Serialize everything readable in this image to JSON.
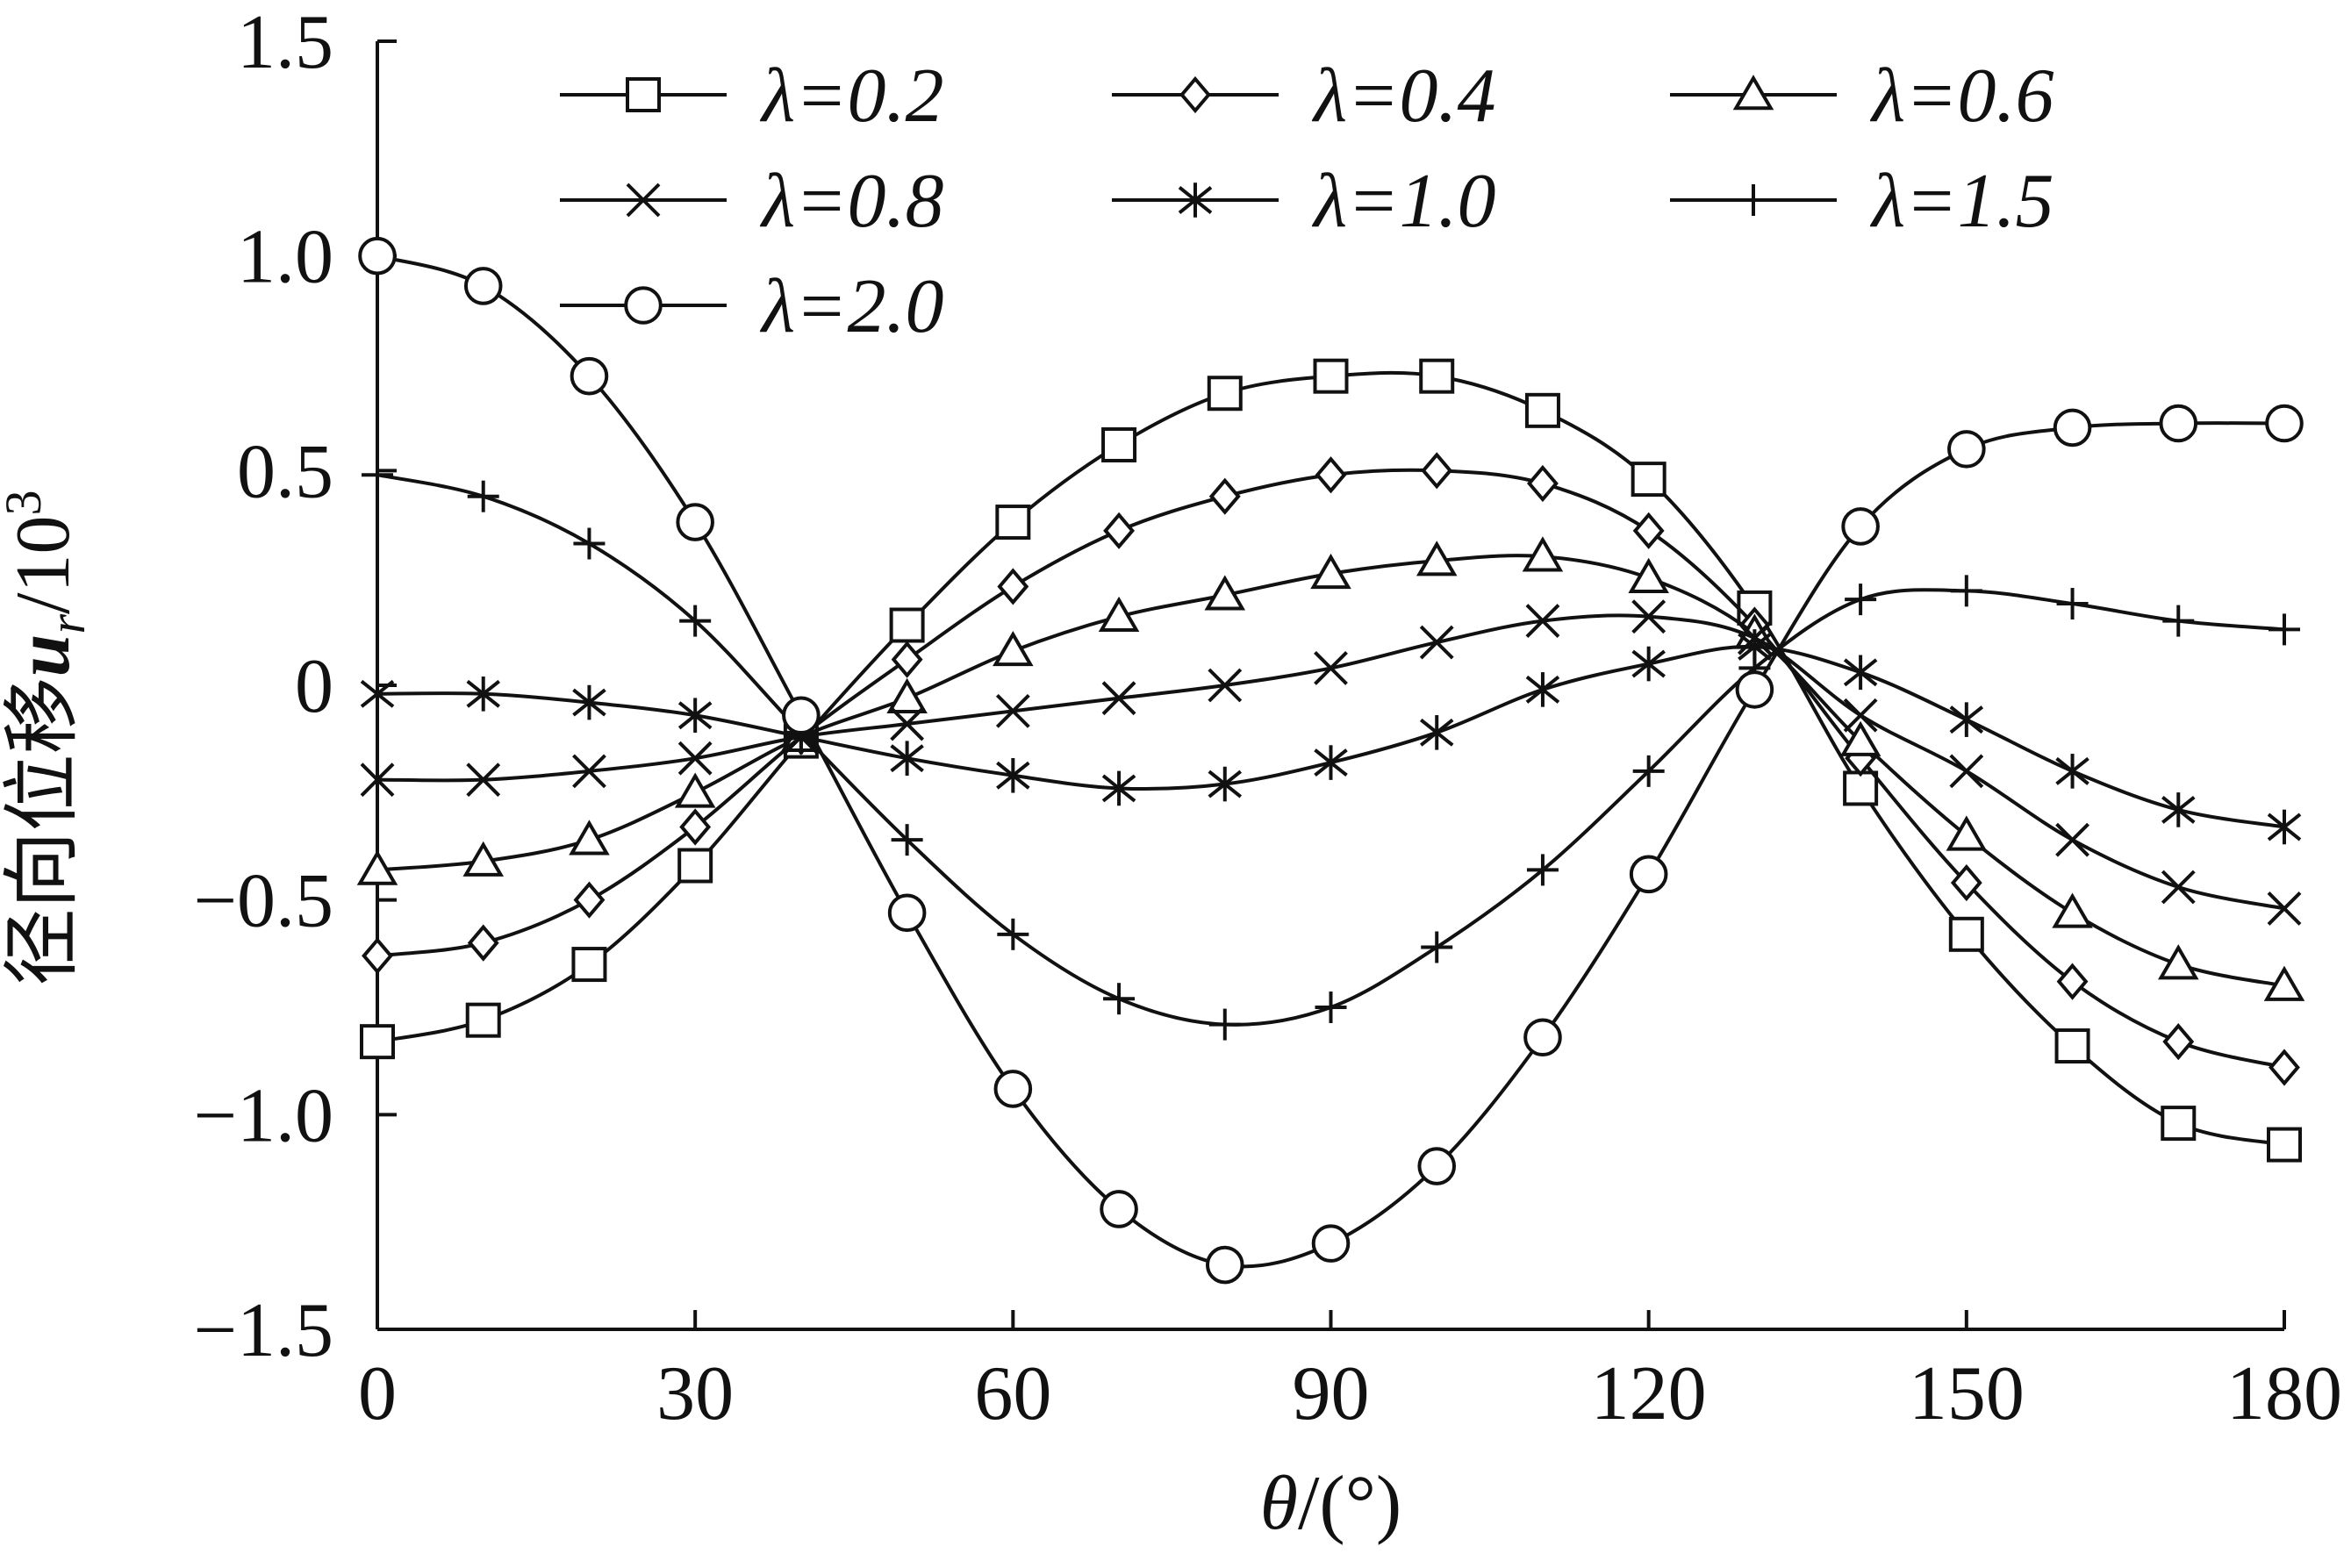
{
  "chart_data": {
    "type": "line",
    "xlabel": "θ/(°)",
    "ylabel": "径向位移u_r/10^3",
    "ylabel_parts": {
      "prefix": "径向位移",
      "var": "u",
      "sub": "r",
      "slash": "/10",
      "sup": "3"
    },
    "xlim": [
      0,
      180
    ],
    "ylim": [
      -1.5,
      1.5
    ],
    "xticks": [
      0,
      30,
      60,
      90,
      120,
      150,
      180
    ],
    "xtick_labels": [
      "0",
      "30",
      "60",
      "90",
      "120",
      "150",
      "180"
    ],
    "yticks": [
      1.5,
      1.0,
      0.5,
      0,
      -0.5,
      -1.0,
      -1.5
    ],
    "ytick_labels": [
      "1.5",
      "1.0",
      "0.5",
      "0",
      "−0.5",
      "−1.0",
      "−1.5"
    ],
    "legend_position": "top",
    "x": [
      0,
      10,
      20,
      30,
      40,
      50,
      60,
      70,
      80,
      90,
      100,
      110,
      120,
      130,
      140,
      150,
      160,
      170,
      180
    ],
    "series": [
      {
        "name": "λ=0.2",
        "marker": "square",
        "values": [
          -0.83,
          -0.78,
          -0.65,
          -0.42,
          -0.13,
          0.14,
          0.38,
          0.56,
          0.68,
          0.72,
          0.72,
          0.64,
          0.48,
          0.18,
          -0.24,
          -0.58,
          -0.84,
          -1.02,
          -1.07
        ]
      },
      {
        "name": "λ=0.4",
        "marker": "diamond",
        "values": [
          -0.63,
          -0.6,
          -0.5,
          -0.33,
          -0.12,
          0.06,
          0.23,
          0.36,
          0.44,
          0.49,
          0.5,
          0.47,
          0.36,
          0.14,
          -0.17,
          -0.46,
          -0.69,
          -0.83,
          -0.89
        ]
      },
      {
        "name": "λ=0.6",
        "marker": "triangle",
        "values": [
          -0.43,
          -0.41,
          -0.36,
          -0.25,
          -0.12,
          -0.03,
          0.08,
          0.16,
          0.21,
          0.26,
          0.29,
          0.3,
          0.25,
          0.12,
          -0.13,
          -0.35,
          -0.53,
          -0.65,
          -0.7
        ]
      },
      {
        "name": "λ=0.8",
        "marker": "x",
        "values": [
          -0.22,
          -0.22,
          -0.2,
          -0.17,
          -0.12,
          -0.09,
          -0.06,
          -0.03,
          0.0,
          0.04,
          0.1,
          0.15,
          0.16,
          0.11,
          -0.07,
          -0.2,
          -0.36,
          -0.47,
          -0.52
        ]
      },
      {
        "name": "λ=1.0",
        "marker": "asterisk",
        "values": [
          -0.02,
          -0.02,
          -0.04,
          -0.07,
          -0.12,
          -0.17,
          -0.21,
          -0.24,
          -0.23,
          -0.18,
          -0.11,
          -0.01,
          0.05,
          0.09,
          0.03,
          -0.08,
          -0.2,
          -0.29,
          -0.33
        ]
      },
      {
        "name": "λ=1.5",
        "marker": "plus",
        "values": [
          0.49,
          0.44,
          0.33,
          0.15,
          -0.11,
          -0.36,
          -0.58,
          -0.73,
          -0.79,
          -0.75,
          -0.61,
          -0.43,
          -0.2,
          0.04,
          0.2,
          0.22,
          0.19,
          0.15,
          0.13
        ]
      },
      {
        "name": "λ=2.0",
        "marker": "circle",
        "values": [
          1.0,
          0.93,
          0.72,
          0.38,
          -0.07,
          -0.53,
          -0.94,
          -1.22,
          -1.35,
          -1.3,
          -1.12,
          -0.82,
          -0.44,
          -0.01,
          0.37,
          0.55,
          0.6,
          0.61,
          0.61
        ]
      }
    ]
  }
}
